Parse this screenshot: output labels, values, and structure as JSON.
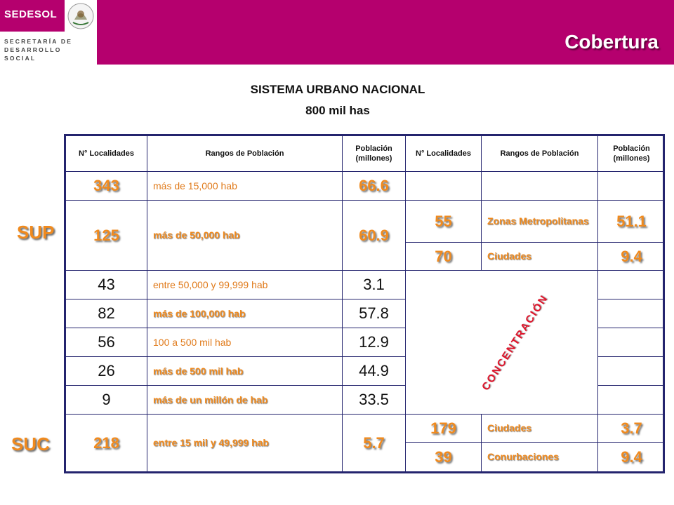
{
  "header": {
    "logo": "SEDESOL",
    "org_line1": "SECRETARÍA DE",
    "org_line2": "DESARROLLO SOCIAL",
    "title": "Cobertura"
  },
  "titles": {
    "line1": "SISTEMA URBANO NACIONAL",
    "line2": "800 mil has"
  },
  "side_labels": {
    "sup": "SUP",
    "suc": "SUC"
  },
  "table": {
    "headers": [
      "N° Localidades",
      "Rangos de Población",
      "Población (millones)",
      "N° Localidades",
      "Rangos de Población",
      "Población (millones)"
    ],
    "rows": [
      {
        "n": "343",
        "rango": "más de 15,000 hab",
        "pob": "66.6"
      },
      {
        "n": "125",
        "rango": "más de 50,000 hab",
        "pob": "60.9"
      },
      {
        "n": "43",
        "rango": "entre 50,000 y 99,999 hab",
        "pob": "3.1"
      },
      {
        "n": "82",
        "rango": "más de 100,000 hab",
        "pob": "57.8"
      },
      {
        "n": "56",
        "rango": "100 a 500 mil hab",
        "pob": "12.9"
      },
      {
        "n": "26",
        "rango": "más de 500 mil hab",
        "pob": "44.9"
      },
      {
        "n": "9",
        "rango": "más de un millón de hab",
        "pob": "33.5"
      },
      {
        "n": "218",
        "rango": "entre 15 mil y 49,999 hab",
        "pob": "5.7"
      }
    ],
    "right": [
      {
        "n": "55",
        "rango": "Zonas Metropolitanas",
        "pob": "51.1"
      },
      {
        "n": "70",
        "rango": "Ciudades",
        "pob": "9.4"
      },
      {
        "n": "179",
        "rango": "Ciudades",
        "pob": "3.7"
      },
      {
        "n": "39",
        "rango": "Conurbaciones",
        "pob": "9.4"
      }
    ],
    "concentracion": "CONCENTRACIÓN"
  },
  "colors": {
    "brand": "#b5006e",
    "accent": "#f08a1e",
    "border": "#24246e",
    "red": "#e0132a"
  }
}
